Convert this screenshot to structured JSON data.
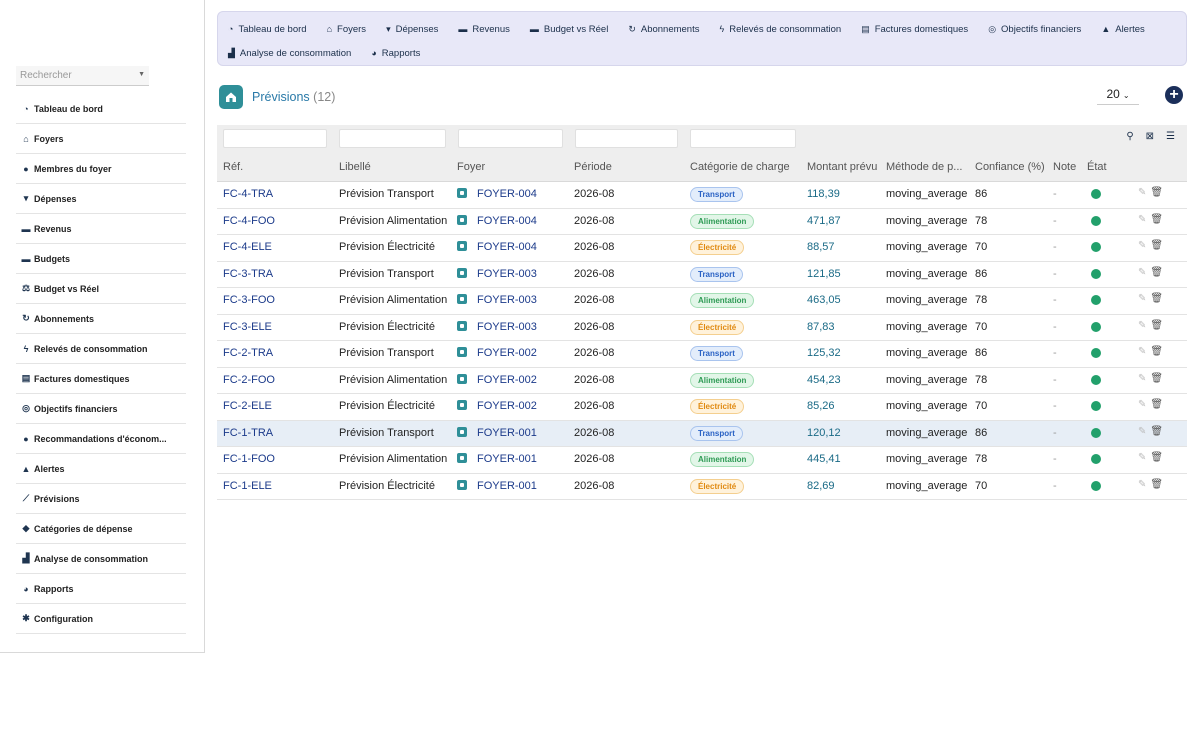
{
  "sidebar": {
    "search_placeholder": "Rechercher",
    "items": [
      {
        "icon": "dashboard-icon",
        "glyph": "◔",
        "label": "Tableau de bord"
      },
      {
        "icon": "home-icon",
        "glyph": "⌂",
        "label": "Foyers"
      },
      {
        "icon": "user-icon",
        "glyph": "●",
        "label": "Membres du foyer"
      },
      {
        "icon": "cart-icon",
        "glyph": "▾",
        "label": "Dépenses"
      },
      {
        "icon": "money-icon",
        "glyph": "▬",
        "label": "Revenus"
      },
      {
        "icon": "wallet-icon",
        "glyph": "▬",
        "label": "Budgets"
      },
      {
        "icon": "balance-icon",
        "glyph": "⚖",
        "label": "Budget vs Réel"
      },
      {
        "icon": "sync-icon",
        "glyph": "↻",
        "label": "Abonnements"
      },
      {
        "icon": "bolt-icon",
        "glyph": "ϟ",
        "label": "Relevés de consommation"
      },
      {
        "icon": "invoice-icon",
        "glyph": "▤",
        "label": "Factures domestiques"
      },
      {
        "icon": "target-icon",
        "glyph": "◎",
        "label": "Objectifs financiers"
      },
      {
        "icon": "lightbulb-icon",
        "glyph": "●",
        "label": "Recommandations d'économ..."
      },
      {
        "icon": "bell-icon",
        "glyph": "▲",
        "label": "Alertes"
      },
      {
        "icon": "chart-line-icon",
        "glyph": "⟋",
        "label": "Prévisions"
      },
      {
        "icon": "tags-icon",
        "glyph": "◆",
        "label": "Catégories de dépense"
      },
      {
        "icon": "area-chart-icon",
        "glyph": "▟",
        "label": "Analyse de consommation"
      },
      {
        "icon": "pie-chart-icon",
        "glyph": "◕",
        "label": "Rapports"
      },
      {
        "icon": "gear-icon",
        "glyph": "✱",
        "label": "Configuration"
      }
    ]
  },
  "topnav": {
    "row1": [
      {
        "icon": "dashboard-icon",
        "glyph": "◔",
        "label": "Tableau de bord"
      },
      {
        "icon": "home-icon",
        "glyph": "⌂",
        "label": "Foyers"
      },
      {
        "icon": "cart-icon",
        "glyph": "▾",
        "label": "Dépenses"
      },
      {
        "icon": "money-icon",
        "glyph": "▬",
        "label": "Revenus"
      },
      {
        "icon": "wallet-icon",
        "glyph": "▬",
        "label": "Budget vs Réel"
      },
      {
        "icon": "sync-icon",
        "glyph": "↻",
        "label": "Abonnements"
      },
      {
        "icon": "bolt-icon",
        "glyph": "ϟ",
        "label": "Relevés de consommation"
      },
      {
        "icon": "invoice-icon",
        "glyph": "▤",
        "label": "Factures domestiques"
      },
      {
        "icon": "target-icon",
        "glyph": "◎",
        "label": "Objectifs financiers"
      },
      {
        "icon": "bell-icon",
        "glyph": "▲",
        "label": "Alertes"
      }
    ],
    "row2": [
      {
        "icon": "area-chart-icon",
        "glyph": "▟",
        "label": "Analyse de consommation"
      },
      {
        "icon": "pie-chart-icon",
        "glyph": "◕",
        "label": "Rapports"
      }
    ]
  },
  "header": {
    "title": "Prévisions",
    "count": "(12)",
    "page_size": "20",
    "add_label": "+"
  },
  "table": {
    "columns": [
      "Réf.",
      "Libellé",
      "Foyer",
      "Période",
      "Catégorie de charge",
      "Montant prévu",
      "Méthode de p...",
      "Confiance (%)",
      "Note",
      "État"
    ],
    "rows": [
      {
        "ref": "FC-4-TRA",
        "label": "Prévision Transport",
        "foyer": "FOYER-004",
        "period": "2026-08",
        "category": "Transport",
        "cat_type": "transport",
        "amount": "118,39",
        "method": "moving_average",
        "confidence": "86",
        "note": "-",
        "highlight": false
      },
      {
        "ref": "FC-4-FOO",
        "label": "Prévision Alimentation",
        "foyer": "FOYER-004",
        "period": "2026-08",
        "category": "Alimentation",
        "cat_type": "alim",
        "amount": "471,87",
        "method": "moving_average",
        "confidence": "78",
        "note": "-",
        "highlight": false
      },
      {
        "ref": "FC-4-ELE",
        "label": "Prévision Électricité",
        "foyer": "FOYER-004",
        "period": "2026-08",
        "category": "Électricité",
        "cat_type": "elec",
        "amount": "88,57",
        "method": "moving_average",
        "confidence": "70",
        "note": "-",
        "highlight": false
      },
      {
        "ref": "FC-3-TRA",
        "label": "Prévision Transport",
        "foyer": "FOYER-003",
        "period": "2026-08",
        "category": "Transport",
        "cat_type": "transport",
        "amount": "121,85",
        "method": "moving_average",
        "confidence": "86",
        "note": "-",
        "highlight": false
      },
      {
        "ref": "FC-3-FOO",
        "label": "Prévision Alimentation",
        "foyer": "FOYER-003",
        "period": "2026-08",
        "category": "Alimentation",
        "cat_type": "alim",
        "amount": "463,05",
        "method": "moving_average",
        "confidence": "78",
        "note": "-",
        "highlight": false
      },
      {
        "ref": "FC-3-ELE",
        "label": "Prévision Électricité",
        "foyer": "FOYER-003",
        "period": "2026-08",
        "category": "Électricité",
        "cat_type": "elec",
        "amount": "87,83",
        "method": "moving_average",
        "confidence": "70",
        "note": "-",
        "highlight": false
      },
      {
        "ref": "FC-2-TRA",
        "label": "Prévision Transport",
        "foyer": "FOYER-002",
        "period": "2026-08",
        "category": "Transport",
        "cat_type": "transport",
        "amount": "125,32",
        "method": "moving_average",
        "confidence": "86",
        "note": "-",
        "highlight": false
      },
      {
        "ref": "FC-2-FOO",
        "label": "Prévision Alimentation",
        "foyer": "FOYER-002",
        "period": "2026-08",
        "category": "Alimentation",
        "cat_type": "alim",
        "amount": "454,23",
        "method": "moving_average",
        "confidence": "78",
        "note": "-",
        "highlight": false
      },
      {
        "ref": "FC-2-ELE",
        "label": "Prévision Électricité",
        "foyer": "FOYER-002",
        "period": "2026-08",
        "category": "Électricité",
        "cat_type": "elec",
        "amount": "85,26",
        "method": "moving_average",
        "confidence": "70",
        "note": "-",
        "highlight": false
      },
      {
        "ref": "FC-1-TRA",
        "label": "Prévision Transport",
        "foyer": "FOYER-001",
        "period": "2026-08",
        "category": "Transport",
        "cat_type": "transport",
        "amount": "120,12",
        "method": "moving_average",
        "confidence": "86",
        "note": "-",
        "highlight": true
      },
      {
        "ref": "FC-1-FOO",
        "label": "Prévision Alimentation",
        "foyer": "FOYER-001",
        "period": "2026-08",
        "category": "Alimentation",
        "cat_type": "alim",
        "amount": "445,41",
        "method": "moving_average",
        "confidence": "78",
        "note": "-",
        "highlight": false
      },
      {
        "ref": "FC-1-ELE",
        "label": "Prévision Électricité",
        "foyer": "FOYER-001",
        "period": "2026-08",
        "category": "Électricité",
        "cat_type": "elec",
        "amount": "82,69",
        "method": "moving_average",
        "confidence": "70",
        "note": "-",
        "highlight": false
      }
    ]
  },
  "colors": {
    "accent": "#2f8f98",
    "nav_bg": "#e8e8f8",
    "state_ok": "#22a06b",
    "link": "#1b3a8a"
  }
}
